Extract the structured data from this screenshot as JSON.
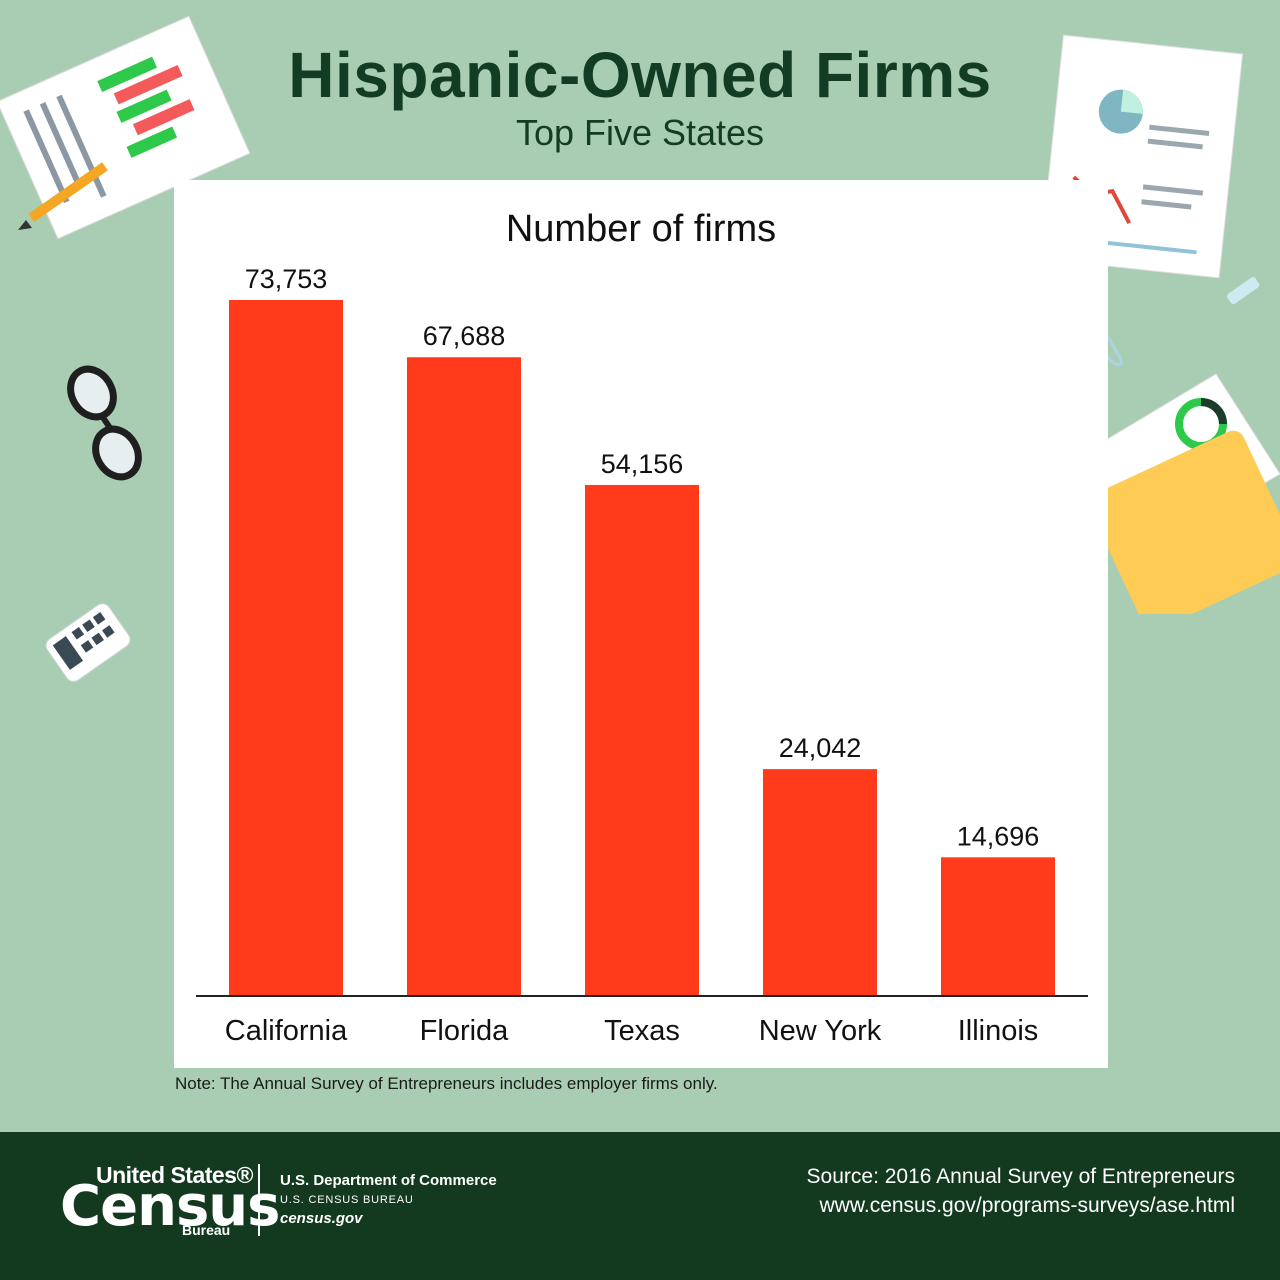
{
  "header": {
    "title": "Hispanic-Owned Firms",
    "subtitle": "Top Five States"
  },
  "chart_heading": "Number of firms",
  "chart_data": {
    "type": "bar",
    "title": "Number of firms",
    "categories": [
      "California",
      "Florida",
      "Texas",
      "New York",
      "Illinois"
    ],
    "values": [
      73753,
      67688,
      54156,
      24042,
      14696
    ],
    "value_labels": [
      "73,753",
      "67,688",
      "54,156",
      "24,042",
      "14,696"
    ],
    "xlabel": "",
    "ylabel": "",
    "ylim": [
      0,
      73753
    ],
    "grid": false,
    "bar_color": "#ff3b1c"
  },
  "note": "Note: The Annual Survey of Entrepreneurs includes employer firms only.",
  "footer": {
    "logo_top": "United States®",
    "logo_main": "Census",
    "logo_bottom": "Bureau",
    "dept": "U.S. Department of Commerce",
    "bureau": "U.S. CENSUS BUREAU",
    "site": "census.gov",
    "source_line1": "Source: 2016 Annual Survey of Entrepreneurs",
    "source_line2": "www.census.gov/programs-surveys/ase.html"
  },
  "colors": {
    "background": "#a9cdb3",
    "title": "#123d24",
    "footer": "#133a1f",
    "bar": "#ff3b1c"
  },
  "decorations": [
    "report-paper-icon",
    "pencil-icon",
    "glasses-icon",
    "calculator-icon",
    "dashboard-paper-icon",
    "eraser-icon",
    "paperclip-icon",
    "folder-icon"
  ]
}
